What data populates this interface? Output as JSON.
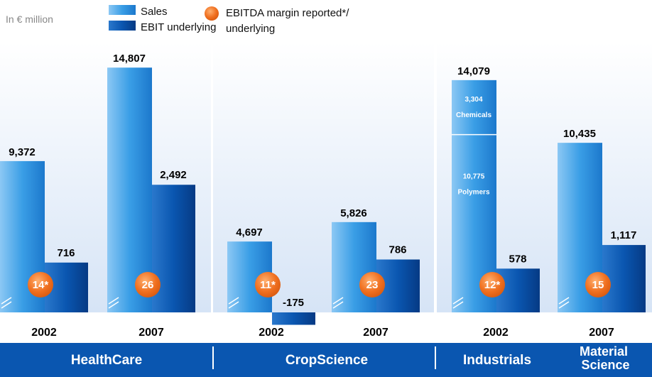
{
  "chart_data": {
    "type": "bar",
    "unit_label": "In € million",
    "categories": [
      "2002",
      "2007",
      "2002",
      "2007",
      "2002",
      "2007"
    ],
    "groups": [
      "HealthCare",
      "CropScience",
      "Industrials",
      "Material Science"
    ],
    "series": [
      {
        "name": "Sales",
        "color": "#3a9ee6",
        "values": [
          9372,
          14807,
          4697,
          5826,
          14079,
          10435
        ],
        "value_labels": [
          "9,372",
          "14,807",
          "4,697",
          "5,826",
          "14,079",
          "10,435"
        ]
      },
      {
        "name": "EBIT underlying",
        "color": "#0a56b0",
        "values": [
          716,
          2492,
          -175,
          786,
          578,
          1117
        ],
        "value_labels": [
          "716",
          "2,492",
          "-175",
          "786",
          "578",
          "1,117"
        ]
      },
      {
        "name": "EBITDA margin reported*/ underlying",
        "color": "#f07020",
        "values": [
          14,
          26,
          11,
          23,
          12,
          15
        ],
        "value_labels": [
          "14*",
          "26",
          "11*",
          "23",
          "12*",
          "15"
        ]
      }
    ],
    "breakdown": [
      {
        "name": "Chemicals",
        "value": 3304,
        "label": "3,304"
      },
      {
        "name": "Polymers",
        "value": 10775,
        "label": "10,775"
      }
    ]
  }
}
